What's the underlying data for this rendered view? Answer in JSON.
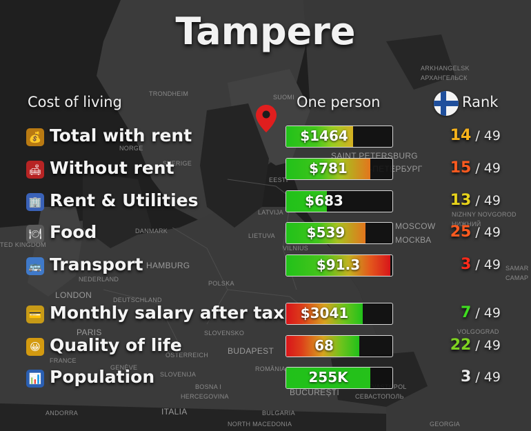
{
  "city": "Tampere",
  "headers": {
    "cost_of_living": "Cost of living",
    "one_person": "One person",
    "rank": "Rank"
  },
  "rows": [
    {
      "label": "Total with rent",
      "icon": "money-bag-icon",
      "emoji": "💰",
      "value": "$1464",
      "fill": 0.62,
      "gradient": "green-yellow",
      "rank": "14",
      "total": "/ 49",
      "rank_color": "#f6b21b"
    },
    {
      "label": "Without rent",
      "icon": "sofa-icon",
      "emoji": "🛋",
      "value": "$781",
      "fill": 0.78,
      "gradient": "green-orange",
      "rank": "15",
      "total": "/ 49",
      "rank_color": "#ff5a1f"
    },
    {
      "label": "Rent & Utilities",
      "icon": "building-icon",
      "emoji": "🏢",
      "value": "$683",
      "fill": 0.38,
      "gradient": "green",
      "rank": "13",
      "total": "/ 49",
      "rank_color": "#e6d21b"
    },
    {
      "label": "Food",
      "icon": "fork-knife-icon",
      "emoji": "🍽",
      "value": "$539",
      "fill": 0.74,
      "gradient": "green-orange",
      "rank": "25",
      "total": "/ 49",
      "rank_color": "#ff5a1f"
    },
    {
      "label": "Transport",
      "icon": "bus-icon",
      "emoji": "🚌",
      "value": "$91.3",
      "fill": 0.97,
      "gradient": "green-red",
      "rank": "3",
      "total": "/ 49",
      "rank_color": "#ff2a1a"
    },
    {
      "label": "Monthly salary after tax",
      "icon": "credit-card-icon",
      "emoji": "💳",
      "value": "$3041",
      "fill": 0.71,
      "gradient": "red-green",
      "rank": "7",
      "total": "/ 49",
      "rank_color": "#3fdd20"
    },
    {
      "label": "Quality of life",
      "icon": "smiley-icon",
      "emoji": "😀",
      "value": "68",
      "fill": 0.68,
      "gradient": "red-green",
      "rank": "22",
      "total": "/ 49",
      "rank_color": "#7ed221"
    },
    {
      "label": "Population",
      "icon": "chart-icon",
      "emoji": "📊",
      "value": "255K",
      "fill": 0.78,
      "gradient": "green-flat",
      "rank": "3",
      "total": "/ 49",
      "rank_color": "#e8e8e8"
    }
  ],
  "map_labels": [
    {
      "text": "ARKHANGELSK",
      "size": "small"
    },
    {
      "text": "АРХАНГЕЛЬСК",
      "size": "small"
    },
    {
      "text": "TRONDHEIM",
      "size": "small"
    },
    {
      "text": "SUOMI",
      "size": "small"
    },
    {
      "text": "NORGE",
      "size": "small"
    },
    {
      "text": "SVERIGE",
      "size": "small"
    },
    {
      "text": "SAINT PETERSBURG",
      "size": "normal"
    },
    {
      "text": "САНКТ-ПЕТЕРБУРГ",
      "size": "normal"
    },
    {
      "text": "EESTI",
      "size": "small"
    },
    {
      "text": "LATVIJA",
      "size": "small"
    },
    {
      "text": "NIZHNY NOVGOROD",
      "size": "small"
    },
    {
      "text": "НИЖНИЙ",
      "size": "small"
    },
    {
      "text": "DANMARK",
      "size": "small"
    },
    {
      "text": "MOSCOW",
      "size": "normal"
    },
    {
      "text": "МОСКВА",
      "size": "normal"
    },
    {
      "text": "LIETUVA",
      "size": "small"
    },
    {
      "text": "VILNIUS",
      "size": "small"
    },
    {
      "text": "TED KINGDOM",
      "size": "small"
    },
    {
      "text": "HAMBURG",
      "size": "normal"
    },
    {
      "text": "SAMAR",
      "size": "small"
    },
    {
      "text": "САМАР",
      "size": "small"
    },
    {
      "text": "NEDERLAND",
      "size": "small"
    },
    {
      "text": "POLSKA",
      "size": "small"
    },
    {
      "text": "LONDON",
      "size": "normal"
    },
    {
      "text": "DEUTSCHLAND",
      "size": "small"
    },
    {
      "text": "VOLGOGRAD",
      "size": "small"
    },
    {
      "text": "PARIS",
      "size": "normal"
    },
    {
      "text": "SLOVENSKO",
      "size": "small"
    },
    {
      "text": "ÖSTERREICH",
      "size": "small"
    },
    {
      "text": "BUDAPEST",
      "size": "normal"
    },
    {
      "text": "FRANCE",
      "size": "small"
    },
    {
      "text": "GENÈVE",
      "size": "small"
    },
    {
      "text": "SLOVENIJA",
      "size": "small"
    },
    {
      "text": "ROMÂNIA",
      "size": "small"
    },
    {
      "text": "SEVASTOPOL",
      "size": "small"
    },
    {
      "text": "СЕВАСТОПОЛЬ",
      "size": "small"
    },
    {
      "text": "BOSNA I",
      "size": "small"
    },
    {
      "text": "HERCEGOVINA",
      "size": "small"
    },
    {
      "text": "BUCUREȘTI",
      "size": "normal"
    },
    {
      "text": "ANDORRA",
      "size": "small"
    },
    {
      "text": "ITALIA",
      "size": "normal"
    },
    {
      "text": "BULGARIA",
      "size": "small"
    },
    {
      "text": "NORTH MACEDONIA",
      "size": "small"
    },
    {
      "text": "GEORGIA",
      "size": "small"
    }
  ]
}
